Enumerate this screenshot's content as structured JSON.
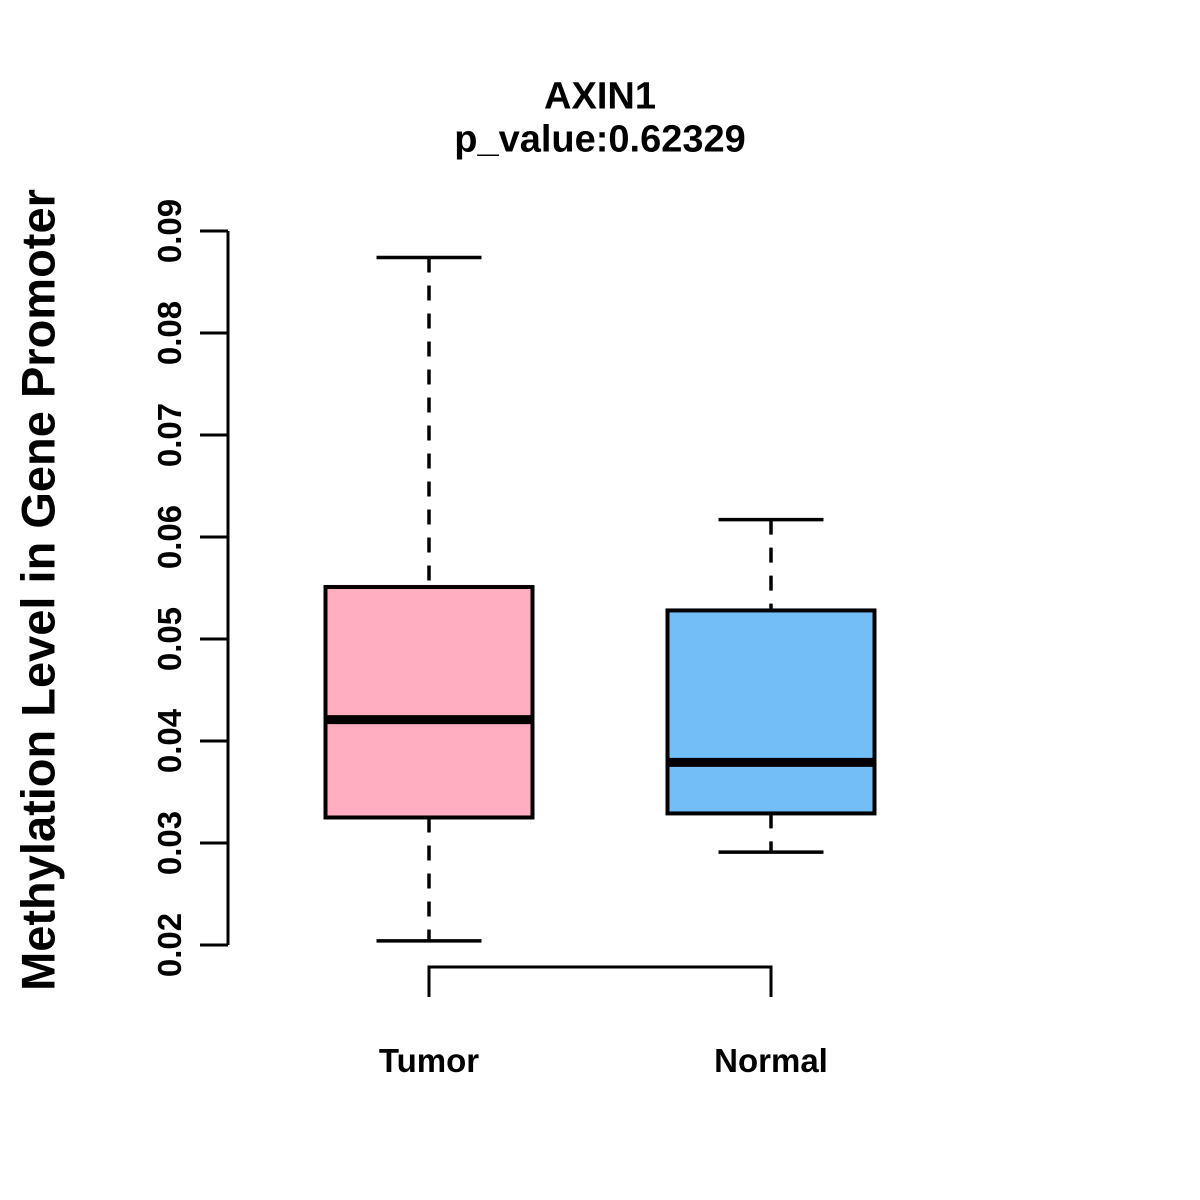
{
  "title": "AXIN1",
  "subtitle": "p_value:0.62329",
  "ylabel": "Methylation Level in Gene Promoter",
  "colors": {
    "tumor_fill": "#FFAEC1",
    "normal_fill": "#74BEF8",
    "line": "#000000",
    "background": "#FFFFFF"
  },
  "chart_data": {
    "type": "boxplot",
    "title": "AXIN1",
    "subtitle": "p_value:0.62329",
    "p_value": 0.62329,
    "gene": "AXIN1",
    "ylabel": "Methylation Level in Gene Promoter",
    "xlabel": "",
    "ylim": [
      0.02,
      0.09
    ],
    "yticks": [
      0.02,
      0.03,
      0.04,
      0.05,
      0.06,
      0.07,
      0.08,
      0.09
    ],
    "ytick_labels": [
      "0.02",
      "0.03",
      "0.04",
      "0.05",
      "0.06",
      "0.07",
      "0.08",
      "0.09"
    ],
    "grid": false,
    "legend": "none",
    "comparison_bracket": [
      "Tumor",
      "Normal"
    ],
    "groups": [
      {
        "label": "Tumor",
        "color": "#FFAEC1",
        "whisker_low": 0.0204,
        "q1": 0.0325,
        "median": 0.0421,
        "q3": 0.0551,
        "whisker_high": 0.0874
      },
      {
        "label": "Normal",
        "color": "#74BEF8",
        "whisker_low": 0.0291,
        "q1": 0.0329,
        "median": 0.0379,
        "q3": 0.0528,
        "whisker_high": 0.0617
      }
    ]
  }
}
